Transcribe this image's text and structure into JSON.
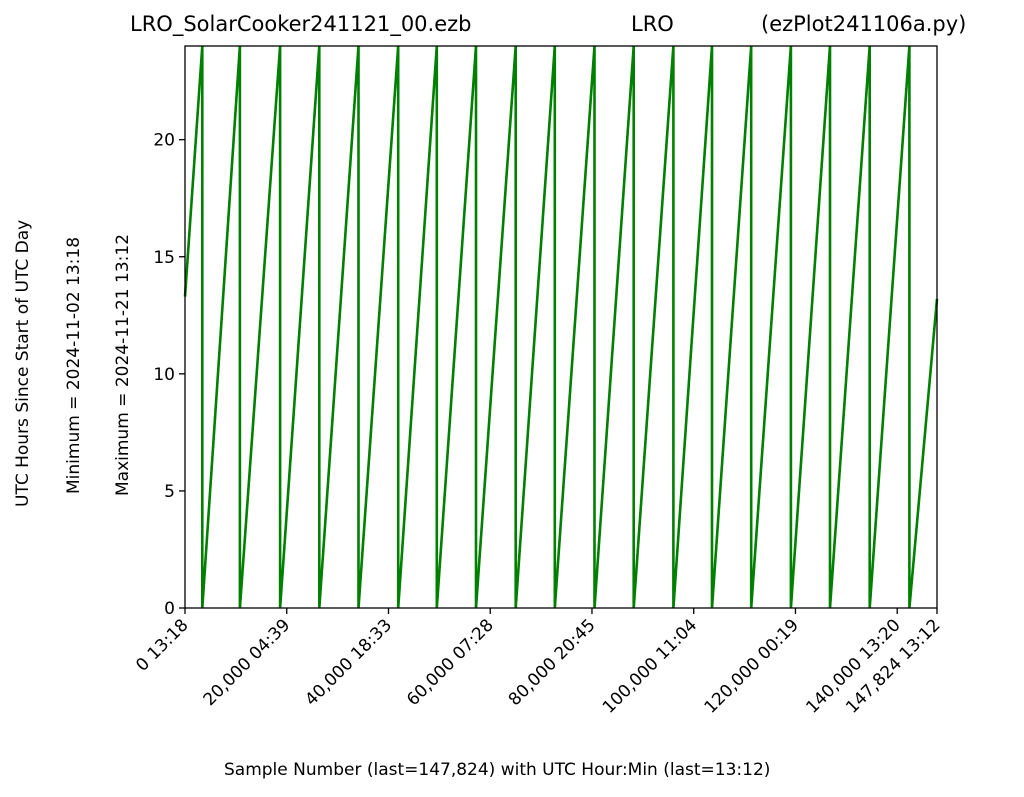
{
  "header": {
    "file": "LRO_SolarCooker241121_00.ezb",
    "station": "LRO",
    "script": "(ezPlot241106a.py)"
  },
  "ylabels": {
    "main": "UTC Hours Since Start of UTC Day",
    "minimum": "Minimum = 2024-11-02    13:18",
    "maximum": "Maximum = 2024-11-21    13:12"
  },
  "chart_data": {
    "type": "line",
    "title": "LRO_SolarCooker241121_00.ezb     LRO     (ezPlot241106a.py)",
    "xlabel": "Sample Number (last=147,824) with UTC Hour:Min (last=13:12)",
    "ylabel": "UTC Hours Since Start of UTC Day",
    "xlim": [
      0,
      147824
    ],
    "ylim": [
      0,
      24
    ],
    "grid": false,
    "color": "#008000",
    "yticks": [
      0,
      5,
      10,
      15,
      20
    ],
    "xticks": [
      {
        "x": 0,
        "label": "0  13:18"
      },
      {
        "x": 20000,
        "label": "20,000  04:39"
      },
      {
        "x": 40000,
        "label": "40,000  18:33"
      },
      {
        "x": 60000,
        "label": "60,000  07:28"
      },
      {
        "x": 80000,
        "label": "80,000  20:45"
      },
      {
        "x": 100000,
        "label": "100,000  11:04"
      },
      {
        "x": 120000,
        "label": "120,000  00:19"
      },
      {
        "x": 140000,
        "label": "140,000  13:20"
      },
      {
        "x": 147824,
        "label": "147,824  13:12"
      }
    ],
    "series": [
      {
        "x": [
          0,
          3400,
          3400,
          10800,
          10800,
          18700,
          18700,
          26400,
          26400,
          34100,
          34100,
          41900,
          41900,
          49500,
          49500,
          57200,
          57200,
          65000,
          65000,
          72700,
          72700,
          80500,
          80500,
          88200,
          88200,
          96000,
          96000,
          103600,
          103600,
          111300,
          111300,
          119100,
          119100,
          126800,
          126800,
          134600,
          134600,
          142400,
          142400,
          147824
        ],
        "y": [
          13.3,
          24,
          0,
          24,
          0,
          24,
          0,
          24,
          0,
          24,
          0,
          24,
          0,
          24,
          0,
          24,
          0,
          24,
          0,
          24,
          0,
          24,
          0,
          24,
          0,
          24,
          0,
          24,
          0,
          24,
          0,
          24,
          0,
          24,
          0,
          24,
          0,
          24,
          0,
          13.2
        ]
      }
    ]
  }
}
